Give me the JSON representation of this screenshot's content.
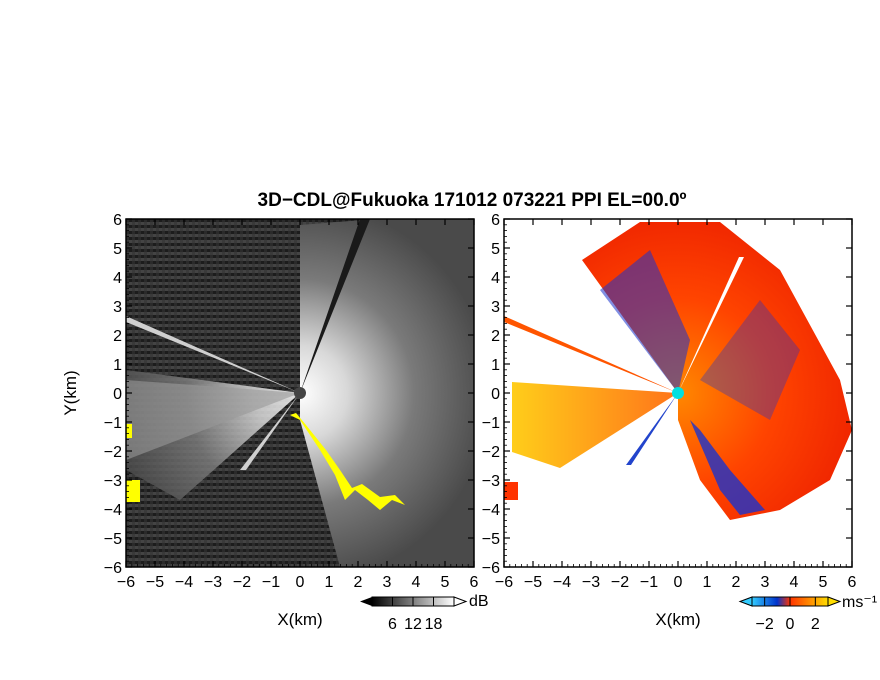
{
  "figure": {
    "title": "3D−CDL@Fukuoka 171012 073221 PPI EL=00.0º"
  },
  "chart_data": [
    {
      "type": "heatmap",
      "name": "ppi-snr",
      "xlabel": "X(km)",
      "ylabel": "Y(km)",
      "xlim": [
        -6,
        6
      ],
      "ylim": [
        -6,
        6
      ],
      "xticks": [
        "−6",
        "−5",
        "−4",
        "−3",
        "−2",
        "−1",
        "0",
        "1",
        "2",
        "3",
        "4",
        "5",
        "6"
      ],
      "yticks": [
        "−6",
        "−5",
        "−4",
        "−3",
        "−2",
        "−1",
        "0",
        "1",
        "2",
        "3",
        "4",
        "5",
        "6"
      ],
      "colorbar": {
        "unit": "dB",
        "ticks": [
          "6",
          "12",
          "18"
        ],
        "tick_values": [
          6,
          12,
          18
        ],
        "range": [
          0,
          24
        ],
        "colors": [
          "#000000",
          "#ffffff"
        ]
      },
      "mask_color": "#ffff00",
      "radar_center": [
        0,
        0
      ]
    },
    {
      "type": "heatmap",
      "name": "ppi-doppler-velocity",
      "xlabel": "X(km)",
      "ylabel": "",
      "xlim": [
        -6,
        6
      ],
      "ylim": [
        -6,
        6
      ],
      "xticks": [
        "−6",
        "−5",
        "−4",
        "−3",
        "−2",
        "−1",
        "0",
        "1",
        "2",
        "3",
        "4",
        "5",
        "6"
      ],
      "yticks": [
        "−6",
        "−5",
        "−4",
        "−3",
        "−2",
        "−1",
        "0",
        "1",
        "2",
        "3",
        "4",
        "5",
        "6"
      ],
      "colorbar": {
        "unit": "ms⁻¹",
        "ticks": [
          "−2",
          "0",
          "2"
        ],
        "tick_values": [
          -2,
          0,
          2
        ],
        "range": [
          -3,
          3
        ],
        "colors": [
          "#33ccff",
          "#0033cc",
          "#ff3300",
          "#ffdd00"
        ]
      },
      "radar_center": [
        0,
        0
      ]
    }
  ]
}
